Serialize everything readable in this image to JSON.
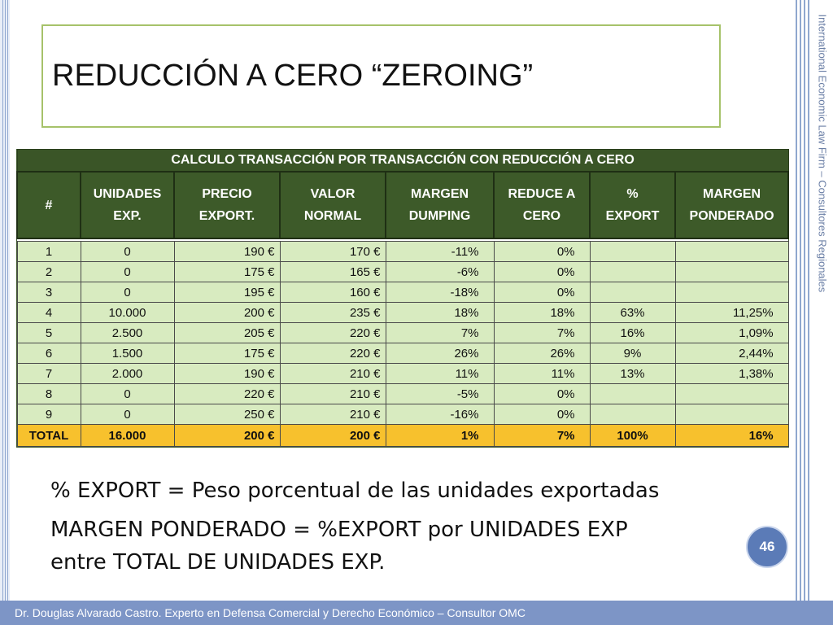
{
  "slide": {
    "title": "REDUCCIÓN A CERO “ZEROING”",
    "side_text": "International Economic Law Firm – Consultores Regionales",
    "page_number": "46",
    "footer": "Dr. Douglas Alvarado Castro. Experto en Defensa Comercial y Derecho Económico – Consultor OMC"
  },
  "table": {
    "title": "CALCULO TRANSACCIÓN POR TRANSACCIÓN CON REDUCCIÓN A CERO",
    "headers": [
      [
        "#",
        ""
      ],
      [
        "UNIDADES",
        "EXP."
      ],
      [
        "PRECIO",
        "EXPORT."
      ],
      [
        "VALOR",
        "NORMAL"
      ],
      [
        "MARGEN",
        "DUMPING"
      ],
      [
        "REDUCE A",
        "CERO"
      ],
      [
        "%",
        "EXPORT"
      ],
      [
        "MARGEN",
        "PONDERADO"
      ]
    ],
    "rows": [
      [
        "1",
        "0",
        "190 €",
        "170 €",
        "-11%",
        "0%",
        "",
        ""
      ],
      [
        "2",
        "0",
        "175 €",
        "165 €",
        "-6%",
        "0%",
        "",
        ""
      ],
      [
        "3",
        "0",
        "195 €",
        "160 €",
        "-18%",
        "0%",
        "",
        ""
      ],
      [
        "4",
        "10.000",
        "200 €",
        "235 €",
        "18%",
        "18%",
        "63%",
        "11,25%"
      ],
      [
        "5",
        "2.500",
        "205 €",
        "220 €",
        "7%",
        "7%",
        "16%",
        "1,09%"
      ],
      [
        "6",
        "1.500",
        "175 €",
        "220 €",
        "26%",
        "26%",
        "9%",
        "2,44%"
      ],
      [
        "7",
        "2.000",
        "190 €",
        "210 €",
        "11%",
        "11%",
        "13%",
        "1,38%"
      ],
      [
        "8",
        "0",
        "220 €",
        "210 €",
        "-5%",
        "0%",
        "",
        ""
      ],
      [
        "9",
        "0",
        "250 €",
        "210 €",
        "-16%",
        "0%",
        "",
        ""
      ]
    ],
    "total": [
      "TOTAL",
      "16.000",
      "200 €",
      "200 €",
      "1%",
      "7%",
      "100%",
      "16%"
    ]
  },
  "notes": {
    "line1": "% EXPORT = Peso porcentual de las unidades exportadas",
    "line2": "MARGEN PONDERADO = %EXPORT por UNIDADES EXP",
    "line3": "entre TOTAL DE UNIDADES EXP."
  },
  "colors": {
    "header_green": "#3d5a29",
    "row_green": "#d8ebc0",
    "total_yellow": "#f7c12d",
    "title_border": "#a6c26a",
    "accent_blue": "#7d95c6"
  }
}
